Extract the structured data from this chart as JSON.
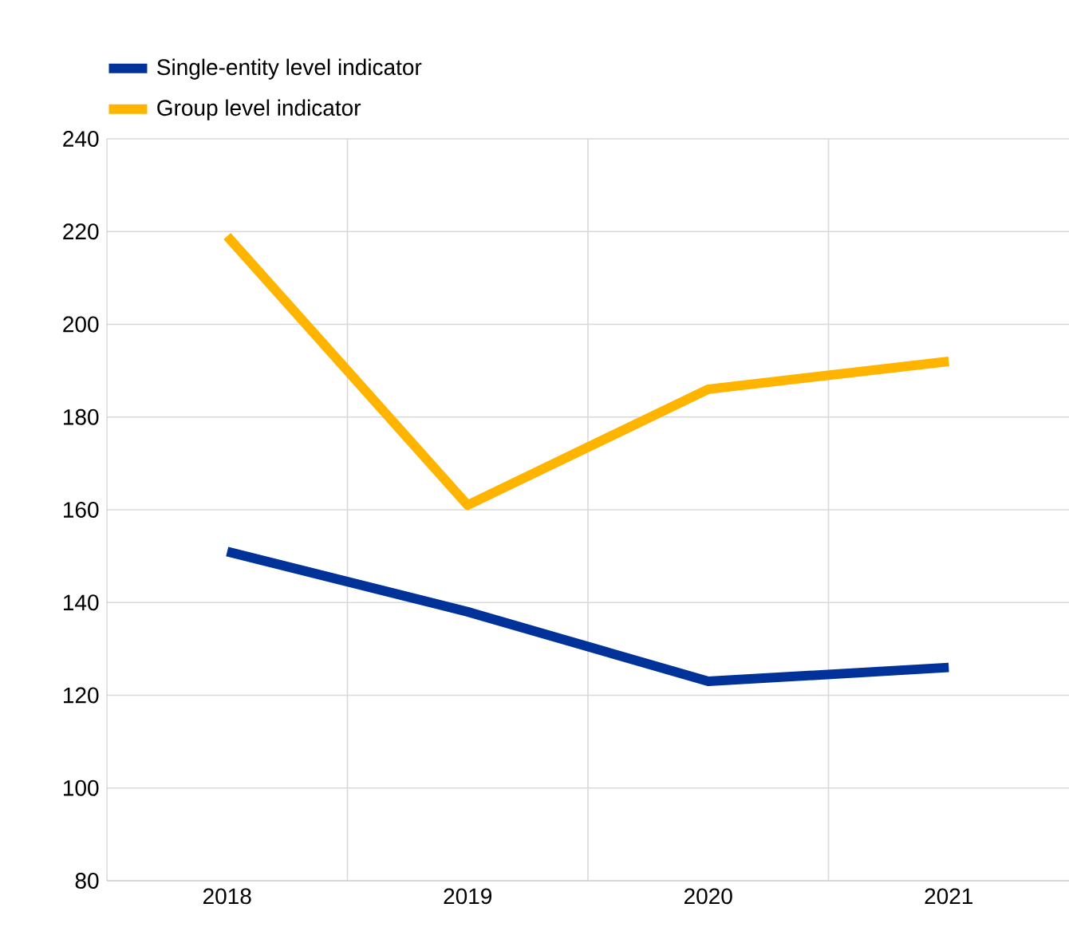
{
  "chart_data": {
    "type": "line",
    "categories": [
      "2018",
      "2019",
      "2020",
      "2021"
    ],
    "series": [
      {
        "name": "Single-entity level indicator",
        "color": "#003299",
        "values": [
          151,
          138,
          123,
          126
        ]
      },
      {
        "name": "Group level indicator",
        "color": "#ffb400",
        "values": [
          219,
          161,
          186,
          192
        ]
      }
    ],
    "ylim": [
      80,
      240
    ],
    "yticks": [
      80,
      100,
      120,
      140,
      160,
      180,
      200,
      220,
      240
    ],
    "grid": true,
    "legend": "top left",
    "marker": "none",
    "line_style": "solid"
  }
}
